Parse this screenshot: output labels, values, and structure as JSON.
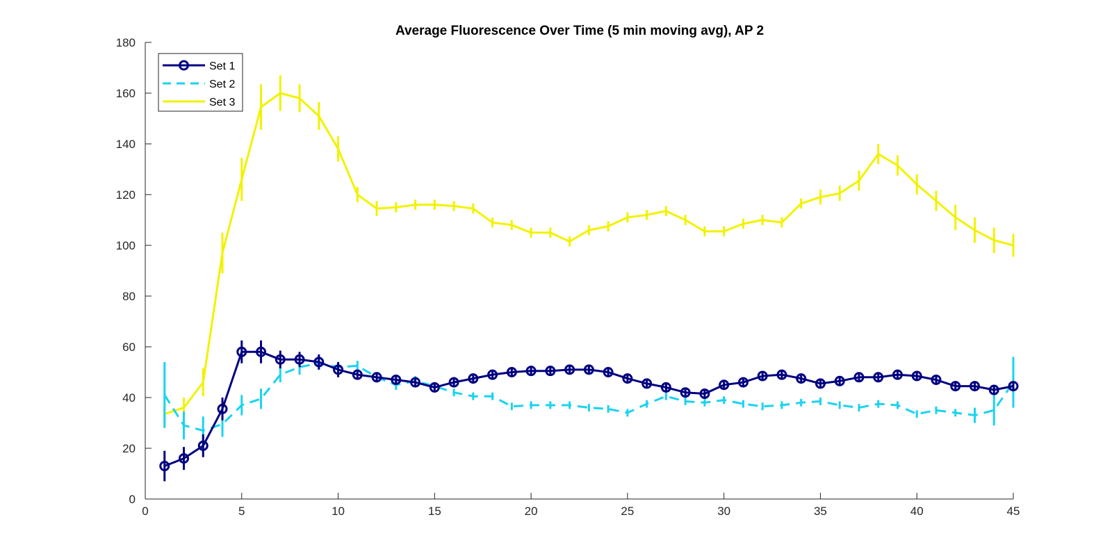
{
  "chart_data": {
    "type": "line",
    "title": "Average Fluorescence Over Time (5 min moving avg), AP 2",
    "xlabel": "",
    "ylabel": "",
    "xlim": [
      0,
      45
    ],
    "ylim": [
      0,
      180
    ],
    "xticks": [
      0,
      5,
      10,
      15,
      20,
      25,
      30,
      35,
      40,
      45
    ],
    "yticks": [
      0,
      20,
      40,
      60,
      80,
      100,
      120,
      140,
      160,
      180
    ],
    "grid": false,
    "legend": {
      "position": "top-left",
      "entries": [
        "Set 1",
        "Set 2",
        "Set 3"
      ]
    },
    "x": [
      1,
      2,
      3,
      4,
      5,
      6,
      7,
      8,
      9,
      10,
      11,
      12,
      13,
      14,
      15,
      16,
      17,
      18,
      19,
      20,
      21,
      22,
      23,
      24,
      25,
      26,
      27,
      28,
      29,
      30,
      31,
      32,
      33,
      34,
      35,
      36,
      37,
      38,
      39,
      40,
      41,
      42,
      43,
      44,
      45
    ],
    "series": [
      {
        "name": "Set 1",
        "color": "#000080",
        "style": "solid-circle-markers",
        "values": [
          13,
          16,
          21,
          35.5,
          58,
          58,
          55,
          55,
          54,
          51,
          49,
          48,
          47,
          46,
          44,
          46,
          47.5,
          49,
          50,
          50.5,
          50.5,
          51,
          51,
          50,
          47.5,
          45.5,
          44,
          42,
          41.5,
          45,
          46,
          48.5,
          49,
          47.5,
          45.5,
          46.5,
          48,
          48,
          49,
          48.5,
          47,
          44.5,
          44.5,
          43,
          44.5
        ],
        "errors": [
          6,
          4.5,
          4.5,
          4.5,
          4.5,
          4.5,
          3.5,
          3,
          3,
          3,
          2,
          2,
          2,
          2,
          2,
          2,
          2,
          1.5,
          1.5,
          1.5,
          1.5,
          1.5,
          1.5,
          1.5,
          1.5,
          1.5,
          1.5,
          1.5,
          1.5,
          1.5,
          1.5,
          1.5,
          1.5,
          1.5,
          1.5,
          1.5,
          1.5,
          1.5,
          1.5,
          1.5,
          1.5,
          1.5,
          1.5,
          1.5,
          1.5
        ]
      },
      {
        "name": "Set 2",
        "color": "#1ad3f0",
        "style": "dashed",
        "values": [
          41,
          29,
          27,
          29.5,
          37,
          39.5,
          49,
          52,
          53.5,
          52,
          52.5,
          48,
          45,
          46.5,
          44.5,
          42,
          40.5,
          40.5,
          36.5,
          37,
          37,
          37,
          36,
          35.5,
          34,
          37.5,
          40.5,
          38.5,
          38,
          39,
          37.5,
          36.5,
          37,
          38,
          38.5,
          37,
          36,
          37.5,
          37,
          33.5,
          35,
          34,
          33,
          35,
          46
        ],
        "errors": [
          13,
          5.5,
          5.5,
          5,
          4,
          4,
          3,
          3,
          2.5,
          2,
          2,
          2,
          2,
          2,
          1.5,
          1.5,
          1.5,
          1.5,
          1.5,
          1.5,
          1.5,
          1.5,
          1.5,
          1.5,
          1.5,
          1.5,
          1.5,
          1.5,
          1.5,
          1.5,
          1.5,
          1.5,
          1.5,
          1.5,
          1.5,
          1.5,
          1.5,
          1.5,
          1.5,
          1.5,
          1.5,
          1.5,
          3,
          6,
          10
        ]
      },
      {
        "name": "Set 3",
        "color": "#f2f200",
        "style": "solid",
        "values": [
          33.5,
          36,
          46,
          97,
          126,
          154.5,
          160,
          158,
          151,
          138,
          120,
          114.5,
          115,
          116,
          116,
          115.5,
          114.5,
          109,
          108,
          105,
          105,
          101.5,
          106,
          107.5,
          111,
          112,
          113.5,
          110,
          105.5,
          105.5,
          108.5,
          110,
          109,
          116.5,
          119,
          120.5,
          125.5,
          136,
          131.5,
          124,
          117.5,
          111,
          106,
          102,
          100
        ],
        "errors": [
          4.5,
          4,
          5.5,
          8,
          8.5,
          9,
          7,
          5.5,
          5.5,
          5,
          3,
          3,
          2,
          2,
          2,
          2,
          2,
          2,
          2,
          2,
          2,
          2,
          2,
          2,
          2,
          2,
          2,
          2,
          2,
          2,
          2,
          2,
          2,
          2,
          3,
          3,
          4,
          4,
          4,
          4,
          4,
          5,
          5,
          5,
          4.5
        ]
      }
    ]
  }
}
